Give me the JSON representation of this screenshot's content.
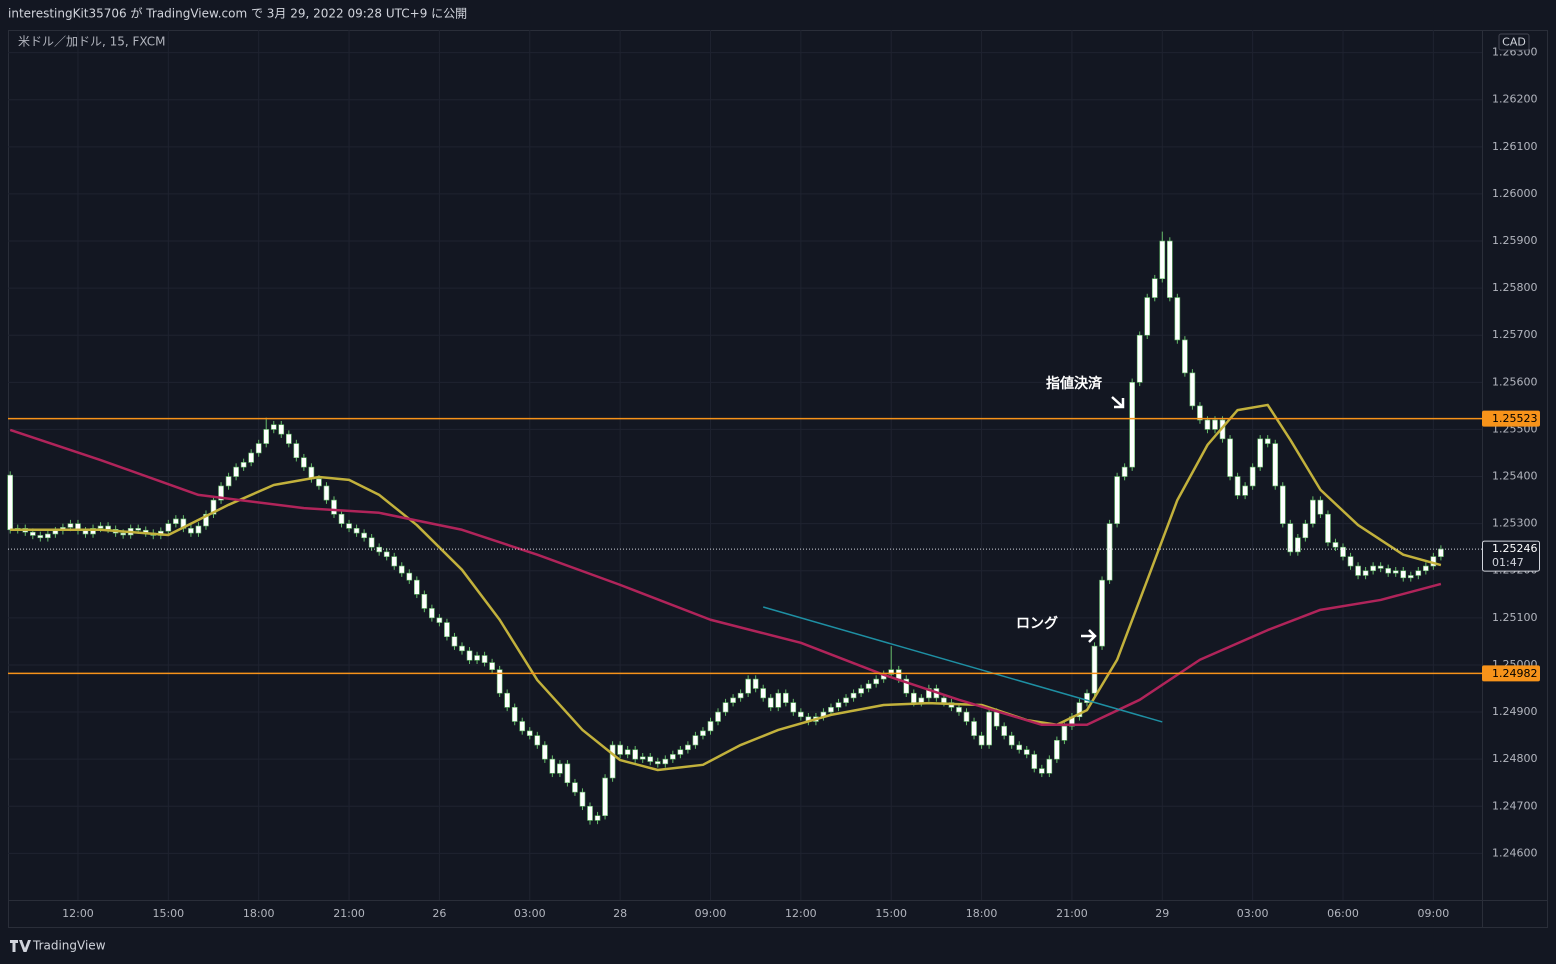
{
  "chart_data": {
    "type": "candlestick",
    "header": "interestingKit35706 が TradingView.com で 3月 29, 2022 09:28 UTC+9 に公開",
    "title": "米ドル／加ドル, 15, FXCM",
    "currency": "CAD",
    "brand": "TradingView",
    "annotations": [
      "指値決済",
      "ロング"
    ],
    "body_color": "#ffffff",
    "wick_color": "#66bb6a",
    "grid": true,
    "ylim": [
      1.24501,
      1.26348
    ],
    "yticks": [
      {
        "value": 1.246,
        "label": "1.24600"
      },
      {
        "value": 1.247,
        "label": "1.24700"
      },
      {
        "value": 1.248,
        "label": "1.24800"
      },
      {
        "value": 1.249,
        "label": "1.24900"
      },
      {
        "value": 1.25,
        "label": "1.25000"
      },
      {
        "value": 1.251,
        "label": "1.25100"
      },
      {
        "value": 1.252,
        "label": "1.25200"
      },
      {
        "value": 1.253,
        "label": "1.25300"
      },
      {
        "value": 1.254,
        "label": "1.25400"
      },
      {
        "value": 1.255,
        "label": "1.25500"
      },
      {
        "value": 1.256,
        "label": "1.25600"
      },
      {
        "value": 1.257,
        "label": "1.25700"
      },
      {
        "value": 1.258,
        "label": "1.25800"
      },
      {
        "value": 1.259,
        "label": "1.25900"
      },
      {
        "value": 1.26,
        "label": "1.26000"
      },
      {
        "value": 1.261,
        "label": "1.26100"
      },
      {
        "value": 1.262,
        "label": "1.26200"
      },
      {
        "value": 1.263,
        "label": "1.26300"
      }
    ],
    "categories": [
      null,
      null,
      null,
      null,
      null,
      null,
      null,
      null,
      null,
      "12:00",
      null,
      null,
      null,
      null,
      null,
      null,
      null,
      null,
      null,
      null,
      null,
      "15:00",
      null,
      null,
      null,
      null,
      null,
      null,
      null,
      null,
      null,
      null,
      null,
      "18:00",
      null,
      null,
      null,
      null,
      null,
      null,
      null,
      null,
      null,
      null,
      null,
      "21:00",
      null,
      null,
      null,
      null,
      null,
      null,
      null,
      null,
      null,
      null,
      null,
      "26",
      null,
      null,
      null,
      null,
      null,
      null,
      null,
      null,
      null,
      null,
      null,
      "03:00",
      null,
      null,
      null,
      null,
      null,
      null,
      null,
      null,
      null,
      null,
      null,
      "28",
      null,
      null,
      null,
      null,
      null,
      null,
      null,
      null,
      null,
      null,
      null,
      "09:00",
      null,
      null,
      null,
      null,
      null,
      null,
      null,
      null,
      null,
      null,
      null,
      "12:00",
      null,
      null,
      null,
      null,
      null,
      null,
      null,
      null,
      null,
      null,
      null,
      "15:00",
      null,
      null,
      null,
      null,
      null,
      null,
      null,
      null,
      null,
      null,
      null,
      "18:00",
      null,
      null,
      null,
      null,
      null,
      null,
      null,
      null,
      null,
      null,
      null,
      "21:00",
      null,
      null,
      null,
      null,
      null,
      null,
      null,
      null,
      null,
      null,
      null,
      "29",
      null,
      null,
      null,
      null,
      null,
      null,
      null,
      null,
      null,
      null,
      null,
      "03:00",
      null,
      null,
      null,
      null,
      null,
      null,
      null,
      null,
      null,
      null,
      null,
      "06:00",
      null,
      null,
      null,
      null,
      null,
      null,
      null,
      null,
      null,
      null,
      null,
      "09:00",
      null
    ],
    "candles": {
      "open": [
        1.25403,
        1.25287,
        1.2529,
        1.25282,
        1.25275,
        1.2527,
        1.25278,
        1.25285,
        1.25292,
        1.253,
        1.25285,
        1.25278,
        1.2529,
        1.25295,
        1.25288,
        1.2528,
        1.25276,
        1.2529,
        1.25286,
        1.2528,
        1.25275,
        1.25284,
        1.253,
        1.2531,
        1.2529,
        1.2528,
        1.25295,
        1.2532,
        1.2535,
        1.2538,
        1.254,
        1.2542,
        1.2543,
        1.2545,
        1.2547,
        1.255,
        1.2551,
        1.2549,
        1.2547,
        1.2544,
        1.2542,
        1.25395,
        1.2538,
        1.2535,
        1.2532,
        1.253,
        1.2529,
        1.2528,
        1.2527,
        1.2525,
        1.2524,
        1.2523,
        1.2521,
        1.25195,
        1.2518,
        1.2515,
        1.2512,
        1.251,
        1.2509,
        1.2506,
        1.2504,
        1.2503,
        1.2501,
        1.2502,
        1.25005,
        1.2499,
        1.2494,
        1.2491,
        1.2488,
        1.2486,
        1.2485,
        1.2483,
        1.248,
        1.2477,
        1.2479,
        1.2475,
        1.2473,
        1.247,
        1.2467,
        1.2468,
        1.2476,
        1.2483,
        1.2481,
        1.2482,
        1.248,
        1.24805,
        1.24795,
        1.2479,
        1.248,
        1.2481,
        1.2482,
        1.2483,
        1.2485,
        1.2486,
        1.2488,
        1.249,
        1.2492,
        1.2493,
        1.2494,
        1.2497,
        1.2495,
        1.2493,
        1.2491,
        1.2494,
        1.2492,
        1.249,
        1.2489,
        1.2488,
        1.2489,
        1.249,
        1.2491,
        1.2492,
        1.2493,
        1.2494,
        1.2495,
        1.2496,
        1.2497,
        1.2498,
        1.2499,
        1.2497,
        1.2494,
        1.2492,
        1.2493,
        1.2495,
        1.2493,
        1.2492,
        1.2491,
        1.249,
        1.2488,
        1.2485,
        1.2483,
        1.249,
        1.2487,
        1.2485,
        1.2483,
        1.2482,
        1.2481,
        1.2478,
        1.2477,
        1.248,
        1.2484,
        1.2487,
        1.2489,
        1.2492,
        1.2494,
        1.2504,
        1.2518,
        1.253,
        1.254,
        1.2542,
        1.256,
        1.257,
        1.2578,
        1.2582,
        1.259,
        1.2578,
        1.2569,
        1.2562,
        1.2555,
        1.2552,
        1.255,
        1.2552,
        1.2548,
        1.254,
        1.2536,
        1.2538,
        1.2542,
        1.2548,
        1.2547,
        1.2538,
        1.253,
        1.2524,
        1.2527,
        1.253,
        1.2535,
        1.2532,
        1.2526,
        1.2525,
        1.2523,
        1.2521,
        1.2519,
        1.252,
        1.2521,
        1.25205,
        1.25195,
        1.252,
        1.25185,
        1.2519,
        1.252,
        1.2521,
        1.2523
      ],
      "high": [
        1.25411,
        1.25298,
        1.25298,
        1.2529,
        1.25283,
        1.25286,
        1.25293,
        1.253,
        1.25308,
        1.25308,
        1.25293,
        1.25298,
        1.25303,
        1.25303,
        1.25296,
        1.25288,
        1.25298,
        1.25298,
        1.25294,
        1.25288,
        1.25292,
        1.25308,
        1.25318,
        1.25318,
        1.25298,
        1.25303,
        1.25328,
        1.25358,
        1.25388,
        1.25408,
        1.25428,
        1.25438,
        1.25458,
        1.25478,
        1.25525,
        1.25518,
        1.25518,
        1.25498,
        1.25478,
        1.25448,
        1.25428,
        1.25403,
        1.25388,
        1.25358,
        1.25328,
        1.25308,
        1.25298,
        1.25288,
        1.25278,
        1.25258,
        1.25248,
        1.25238,
        1.25218,
        1.25203,
        1.25188,
        1.25158,
        1.25128,
        1.25108,
        1.25098,
        1.25068,
        1.25048,
        1.25038,
        1.25028,
        1.25028,
        1.25013,
        1.24998,
        1.24948,
        1.24918,
        1.24888,
        1.24868,
        1.24858,
        1.24838,
        1.24808,
        1.24798,
        1.24798,
        1.24758,
        1.24738,
        1.24708,
        1.24688,
        1.24768,
        1.24838,
        1.24838,
        1.24828,
        1.24828,
        1.24813,
        1.24813,
        1.24803,
        1.24808,
        1.24818,
        1.24828,
        1.24838,
        1.24858,
        1.24868,
        1.24888,
        1.24908,
        1.24928,
        1.24938,
        1.24948,
        1.24978,
        1.24978,
        1.24958,
        1.24938,
        1.24948,
        1.24948,
        1.24928,
        1.24908,
        1.24898,
        1.24898,
        1.24908,
        1.24918,
        1.24928,
        1.24938,
        1.24948,
        1.24958,
        1.24968,
        1.24978,
        1.24988,
        1.2504,
        1.24998,
        1.24978,
        1.24948,
        1.24938,
        1.24958,
        1.24958,
        1.24938,
        1.24928,
        1.24918,
        1.24908,
        1.24888,
        1.24858,
        1.24908,
        1.24908,
        1.24878,
        1.24858,
        1.24838,
        1.24828,
        1.24818,
        1.24788,
        1.24808,
        1.24848,
        1.24878,
        1.24898,
        1.24928,
        1.24948,
        1.25048,
        1.25188,
        1.25308,
        1.25408,
        1.25428,
        1.25608,
        1.25708,
        1.25788,
        1.25828,
        1.2592,
        1.25908,
        1.25788,
        1.25698,
        1.25628,
        1.25558,
        1.25528,
        1.25528,
        1.25528,
        1.25488,
        1.25408,
        1.25388,
        1.25428,
        1.25488,
        1.25488,
        1.25478,
        1.25388,
        1.25308,
        1.25278,
        1.25308,
        1.25358,
        1.25358,
        1.25328,
        1.25268,
        1.25258,
        1.25238,
        1.25218,
        1.25208,
        1.25218,
        1.25218,
        1.25213,
        1.25208,
        1.25208,
        1.25198,
        1.25208,
        1.25218,
        1.25238,
        1.25254
      ],
      "low": [
        1.25279,
        1.25279,
        1.25274,
        1.25267,
        1.25262,
        1.25262,
        1.2527,
        1.25277,
        1.25284,
        1.25277,
        1.2527,
        1.2527,
        1.25282,
        1.2528,
        1.25272,
        1.25268,
        1.25268,
        1.25278,
        1.25272,
        1.25267,
        1.25267,
        1.25276,
        1.25292,
        1.25282,
        1.25272,
        1.25272,
        1.25287,
        1.25312,
        1.25342,
        1.25372,
        1.25392,
        1.25412,
        1.25422,
        1.25442,
        1.25462,
        1.25492,
        1.25482,
        1.25462,
        1.25432,
        1.25412,
        1.25387,
        1.25372,
        1.25342,
        1.25312,
        1.25292,
        1.25282,
        1.25272,
        1.25262,
        1.25242,
        1.25232,
        1.25222,
        1.25202,
        1.25187,
        1.25172,
        1.25142,
        1.25112,
        1.25092,
        1.25082,
        1.25052,
        1.25032,
        1.25022,
        1.25002,
        1.25002,
        1.24997,
        1.24982,
        1.24932,
        1.24902,
        1.24872,
        1.24852,
        1.24842,
        1.24822,
        1.24792,
        1.24762,
        1.24762,
        1.24742,
        1.24722,
        1.24692,
        1.24661,
        1.24662,
        1.24672,
        1.24752,
        1.24802,
        1.24802,
        1.24792,
        1.24792,
        1.24787,
        1.24782,
        1.24782,
        1.24792,
        1.24802,
        1.24812,
        1.24822,
        1.24842,
        1.24852,
        1.24872,
        1.24892,
        1.24912,
        1.24922,
        1.24932,
        1.24942,
        1.24922,
        1.24902,
        1.24902,
        1.24912,
        1.24892,
        1.24882,
        1.24872,
        1.24872,
        1.24882,
        1.24892,
        1.24902,
        1.24912,
        1.24922,
        1.24932,
        1.24942,
        1.24952,
        1.24962,
        1.24972,
        1.24962,
        1.24932,
        1.24912,
        1.24912,
        1.24922,
        1.24922,
        1.24912,
        1.24902,
        1.24892,
        1.24872,
        1.24842,
        1.24822,
        1.24822,
        1.24862,
        1.24842,
        1.24822,
        1.24812,
        1.24802,
        1.24772,
        1.24762,
        1.24762,
        1.24792,
        1.24832,
        1.24862,
        1.24882,
        1.24912,
        1.24932,
        1.25032,
        1.25172,
        1.25292,
        1.25392,
        1.25412,
        1.25592,
        1.25692,
        1.25772,
        1.25812,
        1.25772,
        1.25682,
        1.25612,
        1.25542,
        1.25512,
        1.25492,
        1.25492,
        1.25472,
        1.25392,
        1.25352,
        1.25352,
        1.25372,
        1.25412,
        1.25462,
        1.25372,
        1.25292,
        1.25232,
        1.25232,
        1.25262,
        1.25292,
        1.25312,
        1.25252,
        1.25242,
        1.25222,
        1.25202,
        1.25182,
        1.25182,
        1.25192,
        1.25197,
        1.25187,
        1.25187,
        1.25177,
        1.25177,
        1.25182,
        1.25192,
        1.25202,
        1.25222
      ],
      "close": [
        1.25287,
        1.2529,
        1.25282,
        1.25275,
        1.2527,
        1.25278,
        1.25285,
        1.25292,
        1.253,
        1.25285,
        1.25278,
        1.2529,
        1.25295,
        1.25288,
        1.2528,
        1.25276,
        1.2529,
        1.25286,
        1.2528,
        1.25275,
        1.25284,
        1.253,
        1.2531,
        1.2529,
        1.2528,
        1.25295,
        1.2532,
        1.2535,
        1.2538,
        1.254,
        1.2542,
        1.2543,
        1.2545,
        1.2547,
        1.255,
        1.2551,
        1.2549,
        1.2547,
        1.2544,
        1.2542,
        1.25395,
        1.2538,
        1.2535,
        1.2532,
        1.253,
        1.2529,
        1.2528,
        1.2527,
        1.2525,
        1.2524,
        1.2523,
        1.2521,
        1.25195,
        1.2518,
        1.2515,
        1.2512,
        1.251,
        1.2509,
        1.2506,
        1.2504,
        1.2503,
        1.2501,
        1.2502,
        1.25005,
        1.2499,
        1.2494,
        1.2491,
        1.2488,
        1.2486,
        1.2485,
        1.2483,
        1.248,
        1.2477,
        1.2479,
        1.2475,
        1.2473,
        1.247,
        1.2467,
        1.2468,
        1.2476,
        1.2483,
        1.2481,
        1.2482,
        1.248,
        1.24805,
        1.24795,
        1.2479,
        1.248,
        1.2481,
        1.2482,
        1.2483,
        1.2485,
        1.2486,
        1.2488,
        1.249,
        1.2492,
        1.2493,
        1.2494,
        1.2497,
        1.2495,
        1.2493,
        1.2491,
        1.2494,
        1.2492,
        1.249,
        1.2489,
        1.2488,
        1.2489,
        1.249,
        1.2491,
        1.2492,
        1.2493,
        1.2494,
        1.2495,
        1.2496,
        1.2497,
        1.2498,
        1.2499,
        1.2497,
        1.2494,
        1.2492,
        1.2493,
        1.2495,
        1.2493,
        1.2492,
        1.2491,
        1.249,
        1.2488,
        1.2485,
        1.2483,
        1.249,
        1.2487,
        1.2485,
        1.2483,
        1.2482,
        1.2481,
        1.2478,
        1.2477,
        1.248,
        1.2484,
        1.2487,
        1.2489,
        1.2492,
        1.2494,
        1.2504,
        1.2518,
        1.253,
        1.254,
        1.2542,
        1.256,
        1.257,
        1.2578,
        1.2582,
        1.259,
        1.2578,
        1.2569,
        1.2562,
        1.2555,
        1.2552,
        1.255,
        1.2552,
        1.2548,
        1.254,
        1.2536,
        1.2538,
        1.2542,
        1.2548,
        1.2547,
        1.2538,
        1.253,
        1.2524,
        1.2527,
        1.253,
        1.2535,
        1.2532,
        1.2526,
        1.2525,
        1.2523,
        1.2521,
        1.2519,
        1.252,
        1.2521,
        1.25205,
        1.25195,
        1.252,
        1.25185,
        1.2519,
        1.252,
        1.2521,
        1.2523,
        1.25246
      ]
    },
    "series": [
      {
        "color": "#c2b13c",
        "x": [
          0,
          12,
          21,
          29,
          35,
          41,
          45,
          49,
          54,
          60,
          65,
          70,
          76,
          81,
          86,
          92,
          97,
          102,
          109,
          116,
          122,
          129,
          135,
          139,
          143,
          147,
          151,
          155,
          159,
          163,
          167,
          170,
          174,
          179,
          185,
          190
        ],
        "values": [
          1.25287,
          1.25287,
          1.25276,
          1.2534,
          1.25382,
          1.25399,
          1.25393,
          1.25361,
          1.25297,
          1.25202,
          1.25096,
          1.24968,
          1.24862,
          1.24798,
          1.24777,
          1.24788,
          1.2483,
          1.24862,
          1.24894,
          1.24915,
          1.24919,
          1.24915,
          1.24883,
          1.24873,
          1.24904,
          1.25011,
          1.2518,
          1.2535,
          1.25467,
          1.25541,
          1.25552,
          1.25478,
          1.25372,
          1.25297,
          1.25234,
          1.25212
        ]
      },
      {
        "color": "#b0245a",
        "x": [
          0,
          12,
          25,
          39,
          49,
          60,
          70,
          81,
          93,
          105,
          116,
          126,
          137,
          143,
          150,
          158,
          167,
          174,
          182,
          190
        ],
        "values": [
          1.25499,
          1.25435,
          1.25361,
          1.25333,
          1.25323,
          1.25287,
          1.25234,
          1.2517,
          1.25096,
          1.25047,
          1.24979,
          1.24926,
          1.24873,
          1.24873,
          1.24926,
          1.25011,
          1.25074,
          1.25117,
          1.25138,
          1.25172
        ]
      }
    ],
    "trendline": {
      "color": "#1e8fa3",
      "x": [
        100,
        153
      ],
      "values": [
        1.25123,
        1.24879
      ]
    },
    "hlines": [
      1.25523,
      1.24982
    ],
    "hline_color": "#f7931a",
    "last_price": 1.25246,
    "countdown": "01:47"
  }
}
